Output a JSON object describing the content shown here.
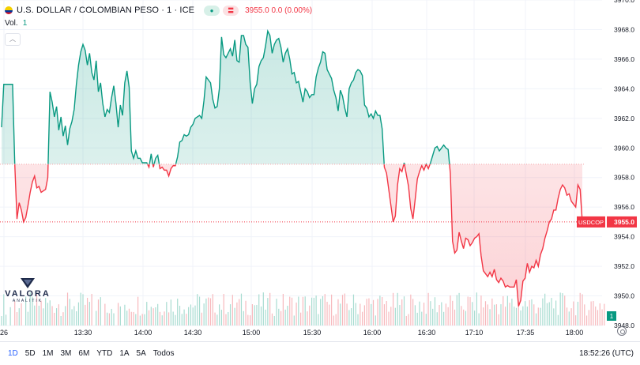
{
  "header": {
    "symbol_title": "U.S. DOLLAR / COLOMBIAN PESO · 1 · ICE",
    "quote": "3955.0 0.0 (0.00%)",
    "volume_label": "Vol.",
    "volume_value": "1",
    "collapse_icon": "chevron-up-icon"
  },
  "price_tag": {
    "symbol": "USDCOP",
    "value": "3955.0"
  },
  "volume_tag": "1",
  "logo": {
    "name": "VALORA",
    "sub": "ANALITIK"
  },
  "bottom_bar": {
    "ranges": [
      "1D",
      "5D",
      "1M",
      "3M",
      "6M",
      "YTD",
      "1A",
      "5A",
      "Todos"
    ],
    "active_range": "1D",
    "clock": "18:52:26 (UTC)"
  },
  "colors": {
    "up": "#089981",
    "down": "#f23645",
    "up_fill": "#d8f0ea",
    "down_fill": "#fbdada"
  },
  "chart_data": {
    "type": "area",
    "baseline": 3958.9,
    "last_price": 3955.0,
    "ylim": [
      3948.0,
      3970.0
    ],
    "y_ticks": [
      "3970.0",
      "3968.0",
      "3966.0",
      "3964.0",
      "3962.0",
      "3960.0",
      "3958.0",
      "3956.0",
      "3954.0",
      "3952.0",
      "3950.0",
      "3948.0"
    ],
    "x_ticks": [
      "26",
      "13:30",
      "14:00",
      "14:30",
      "15:00",
      "15:30",
      "16:00",
      "16:30",
      "17:10",
      "17:35",
      "18:00"
    ],
    "series": [
      {
        "values": [
          3961.4,
          3964.3,
          3964.3,
          3964.3,
          3964.3,
          3964.3,
          3958.9,
          3955.2,
          3956.3,
          3955.8,
          3955.0,
          3955.3,
          3956.1,
          3957.0,
          3957.7,
          3958.1,
          3957.3,
          3957.4,
          3957.0,
          3957.1,
          3957.2,
          3958.0,
          3963.8,
          3963.1,
          3962.1,
          3962.8,
          3961.2,
          3962.1,
          3960.8,
          3961.5,
          3960.2,
          3961.3,
          3961.8,
          3962.6,
          3964.3,
          3965.6,
          3966.5,
          3967.0,
          3966.6,
          3965.6,
          3966.4,
          3965.1,
          3964.6,
          3965.9,
          3963.8,
          3964.4,
          3963.0,
          3962.1,
          3962.6,
          3962.4,
          3963.4,
          3964.2,
          3963.0,
          3961.4,
          3962.9,
          3962.2,
          3964.4,
          3965.2,
          3964.1,
          3959.8,
          3959.3,
          3959.8,
          3959.3,
          3959.3,
          3959.0,
          3959.0,
          3959.0,
          3958.7,
          3959.6,
          3958.7,
          3959.3,
          3959.5,
          3958.6,
          3958.7,
          3958.5,
          3958.5,
          3958.1,
          3958.6,
          3958.8,
          3958.8,
          3959.4,
          3960.4,
          3960.5,
          3960.9,
          3960.8,
          3960.9,
          3961.4,
          3961.6,
          3962.0,
          3962.1,
          3962.2,
          3962.0,
          3963.2,
          3964.8,
          3964.6,
          3964.4,
          3963.3,
          3962.7,
          3962.8,
          3964.0,
          3967.5,
          3966.3,
          3966.1,
          3966.4,
          3966.7,
          3966.2,
          3967.3,
          3965.9,
          3965.8,
          3967.6,
          3967.6,
          3967.0,
          3966.8,
          3964.4,
          3963.0,
          3964.0,
          3964.3,
          3965.5,
          3965.9,
          3966.1,
          3966.9,
          3967.9,
          3967.6,
          3966.4,
          3967.0,
          3967.3,
          3967.4,
          3966.8,
          3965.8,
          3966.4,
          3966.7,
          3966.0,
          3965.0,
          3965.1,
          3964.4,
          3964.5,
          3963.8,
          3963.1,
          3964.0,
          3963.8,
          3963.4,
          3963.6,
          3963.6,
          3964.8,
          3965.4,
          3965.8,
          3966.5,
          3966.4,
          3965.3,
          3965.0,
          3964.7,
          3963.9,
          3963.4,
          3962.5,
          3963.9,
          3963.5,
          3962.7,
          3962.1,
          3964.0,
          3964.4,
          3964.6,
          3965.1,
          3965.3,
          3965.2,
          3964.9,
          3962.9,
          3962.7,
          3962.1,
          3962.3,
          3962.0,
          3962.5,
          3962.2,
          3962.2,
          3961.3,
          3958.7,
          3958.3,
          3957.2,
          3956.1,
          3955.0,
          3955.4,
          3957.5,
          3958.6,
          3958.4,
          3959.0,
          3958.2,
          3957.4,
          3955.9,
          3955.2,
          3956.5,
          3957.9,
          3958.4,
          3958.8,
          3958.5,
          3958.9,
          3958.6,
          3959.0,
          3959.5,
          3960.0,
          3960.1,
          3959.8,
          3960.0,
          3960.2,
          3960.0,
          3959.9,
          3958.3,
          3953.7,
          3952.9,
          3953.1,
          3954.3,
          3953.7,
          3953.2,
          3953.9,
          3953.8,
          3953.4,
          3953.6,
          3953.9,
          3954.0,
          3954.2,
          3952.7,
          3951.7,
          3951.5,
          3951.3,
          3951.6,
          3951.3,
          3951.8,
          3951.1,
          3950.9,
          3951.2,
          3951.0,
          3950.6,
          3950.7,
          3950.6,
          3950.6,
          3950.6,
          3951.1,
          3949.3,
          3949.7,
          3951.0,
          3951.2,
          3952.2,
          3951.6,
          3952.0,
          3951.9,
          3952.4,
          3952.0,
          3952.8,
          3953.2,
          3953.9,
          3954.4,
          3955.0,
          3955.2,
          3955.8,
          3955.8,
          3956.6,
          3957.2,
          3957.5,
          3957.3,
          3956.8,
          3956.9,
          3956.4,
          3956.2,
          3956.0,
          3957.5,
          3957.2,
          3955.0
        ]
      }
    ],
    "volume": [
      1,
      1,
      1,
      0,
      1,
      0,
      1,
      1,
      1,
      1,
      0,
      1,
      1,
      1,
      1,
      1,
      1,
      1,
      1,
      1,
      1,
      1,
      1,
      1,
      1,
      1,
      1,
      1,
      1,
      1,
      1,
      1,
      1,
      1,
      1,
      1,
      1,
      1,
      1,
      1,
      1,
      1,
      0,
      1,
      1,
      1,
      0,
      1,
      1,
      1,
      1,
      1,
      0,
      1,
      1,
      0,
      1,
      1,
      1,
      1,
      1,
      1,
      1,
      1,
      1,
      1,
      1,
      1,
      1,
      1,
      1,
      1,
      1,
      1,
      1,
      1,
      1,
      1,
      1,
      1,
      1,
      1,
      1,
      1,
      1,
      1,
      1,
      1,
      1,
      1,
      1,
      1,
      1,
      1,
      1,
      1,
      1,
      1,
      1,
      1,
      1,
      1,
      1,
      1,
      1,
      1,
      1,
      1,
      1,
      1,
      1,
      1,
      1,
      1,
      1,
      1,
      1,
      1,
      1,
      1,
      1,
      1,
      1,
      1,
      1,
      1,
      1,
      1,
      1,
      1,
      1,
      1,
      1,
      1,
      1,
      1,
      1,
      1,
      1,
      1,
      1,
      1,
      1,
      1,
      1,
      1,
      1,
      1,
      1,
      1,
      1,
      1,
      1,
      1,
      1,
      1,
      1,
      1,
      1,
      1,
      1,
      1,
      1,
      1,
      1,
      1,
      1,
      1,
      1,
      1,
      1,
      1,
      1,
      1,
      1,
      1,
      1,
      1,
      1,
      1,
      1,
      1,
      1,
      1,
      1,
      1,
      1,
      1,
      1,
      1,
      1,
      1,
      1,
      1,
      1,
      1,
      1,
      1,
      1,
      1,
      1,
      1,
      1,
      1,
      1,
      1,
      1,
      1,
      1,
      1,
      1,
      1,
      1,
      1,
      1,
      1,
      1,
      1,
      1,
      1,
      1,
      1,
      1,
      1,
      1,
      1,
      1,
      1,
      1,
      1,
      1,
      1,
      1,
      1,
      1,
      1,
      1,
      1,
      1,
      1,
      1,
      1,
      1,
      1,
      1,
      1,
      1,
      1,
      1,
      1,
      1,
      1,
      1,
      1,
      1,
      1,
      1,
      1,
      1,
      1,
      1,
      1,
      1,
      1,
      1,
      1,
      1,
      1,
      1,
      1,
      1,
      1,
      1,
      1,
      1
    ]
  }
}
